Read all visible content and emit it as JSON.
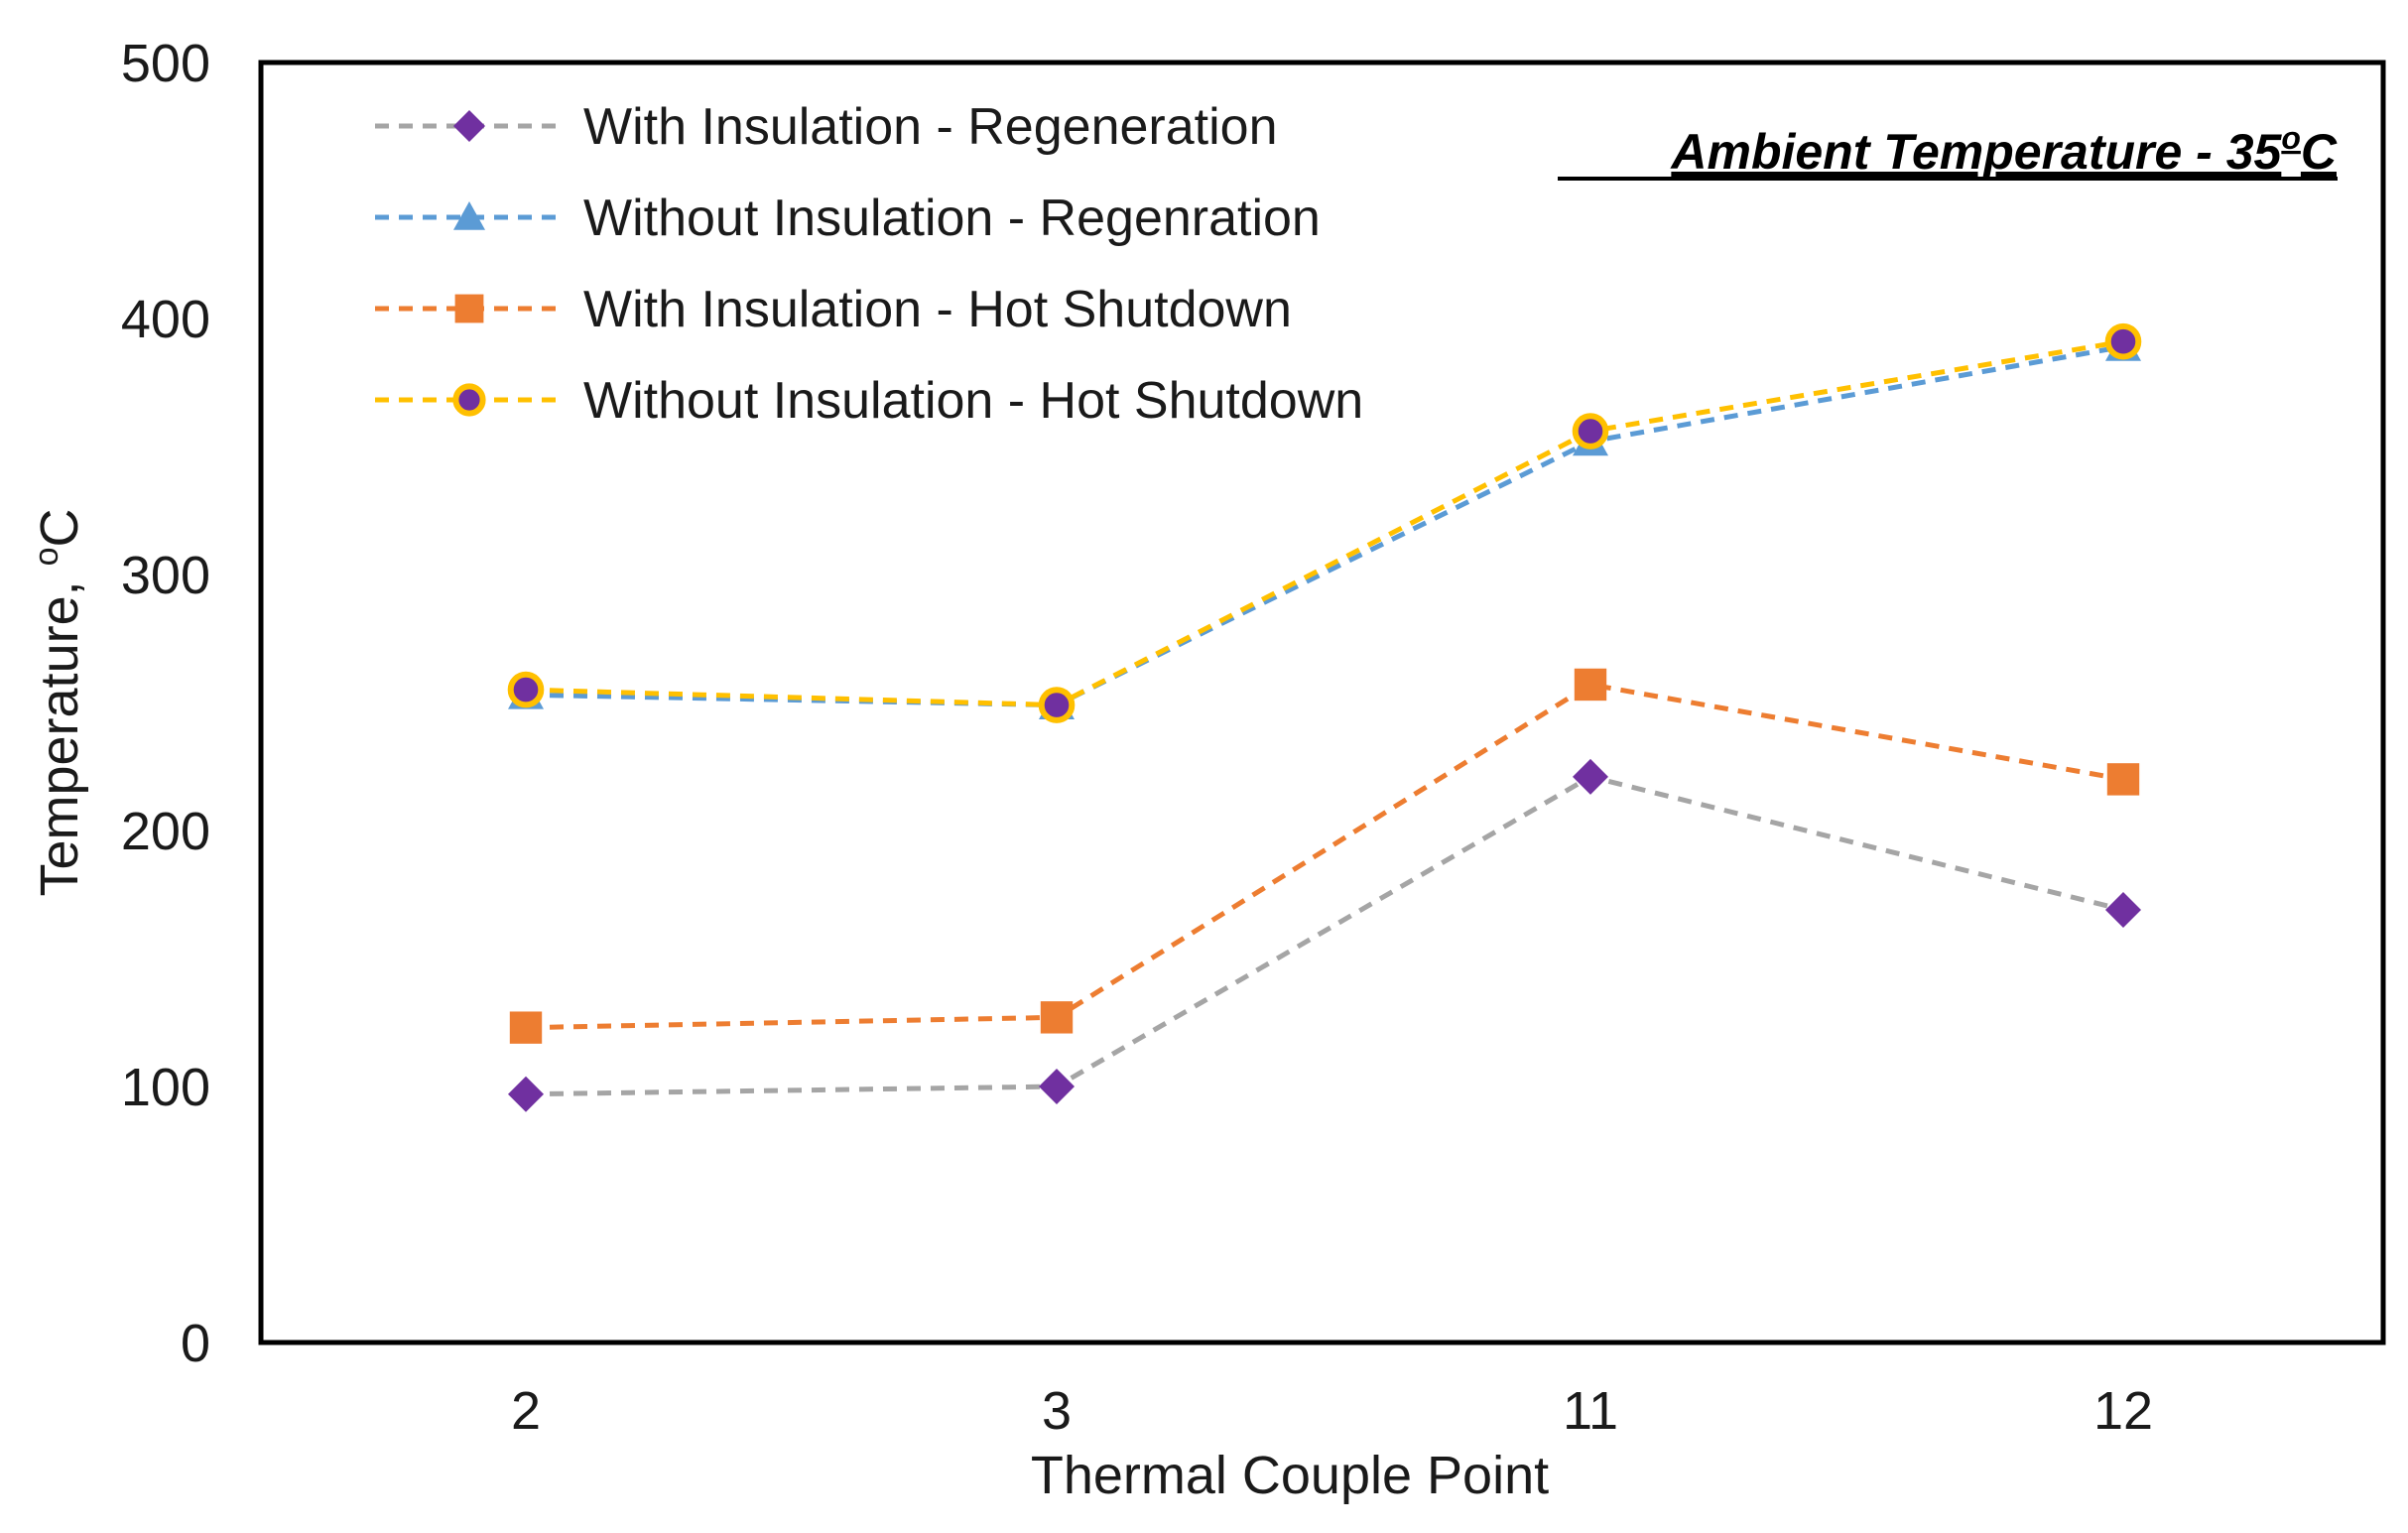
{
  "chart_data": {
    "type": "line",
    "title": "",
    "annotation": {
      "text_main": "Ambient Temperature - 35",
      "text_sup": "o",
      "text_unit": "C"
    },
    "xlabel": "Thermal Couple Point",
    "ylabel": {
      "text_main": "Temperature, ",
      "text_sup": "o",
      "text_unit": "C"
    },
    "categories": [
      "2",
      "3",
      "11",
      "12"
    ],
    "ylim": [
      0,
      500
    ],
    "yticks": [
      0,
      100,
      200,
      300,
      400,
      500
    ],
    "ytick_labels": [
      "0",
      "100",
      "200",
      "300",
      "400",
      "500"
    ],
    "grid": false,
    "legend_position": "top-left",
    "series": [
      {
        "name": "With Insulation - Regeneration",
        "values": [
          97,
          100,
          221,
          169
        ],
        "line_color": "#a5a5a5",
        "marker": "diamond",
        "marker_color": "#7030a0"
      },
      {
        "name": "Without Insulation - Regenration",
        "values": [
          253,
          249,
          352,
          389
        ],
        "line_color": "#5b9bd5",
        "marker": "triangle",
        "marker_color": "#5b9bd5"
      },
      {
        "name": "With Insulation - Hot Shutdown",
        "values": [
          123,
          127,
          257,
          220
        ],
        "line_color": "#ed7d31",
        "marker": "square",
        "marker_color": "#ed7d31"
      },
      {
        "name": "Without Insulation - Hot Shutdown",
        "values": [
          255,
          249,
          356,
          391
        ],
        "line_color": "#ffc000",
        "marker": "circle",
        "marker_color": "#7030a0",
        "marker_edge_color": "#ffc000"
      }
    ]
  }
}
